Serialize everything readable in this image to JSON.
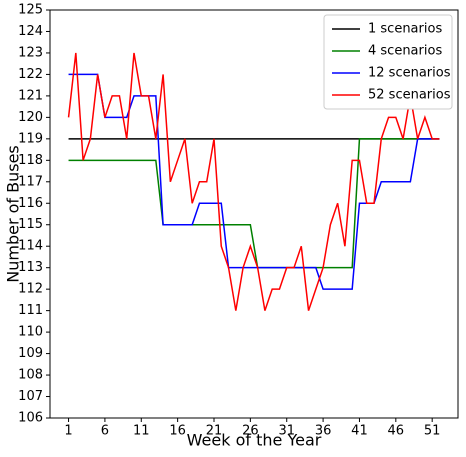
{
  "chart_data": {
    "type": "line",
    "x_label": "Week of the Year",
    "y_label": "Number of Buses",
    "x": [
      1,
      2,
      3,
      4,
      5,
      6,
      7,
      8,
      9,
      10,
      11,
      12,
      13,
      14,
      15,
      16,
      17,
      18,
      19,
      20,
      21,
      22,
      23,
      24,
      25,
      26,
      27,
      28,
      29,
      30,
      31,
      32,
      33,
      34,
      35,
      36,
      37,
      38,
      39,
      40,
      41,
      42,
      43,
      44,
      45,
      46,
      47,
      48,
      49,
      50,
      51,
      52
    ],
    "series": [
      {
        "name": "1 scenarios",
        "color": "#000000",
        "values": [
          119,
          119,
          119,
          119,
          119,
          119,
          119,
          119,
          119,
          119,
          119,
          119,
          119,
          119,
          119,
          119,
          119,
          119,
          119,
          119,
          119,
          119,
          119,
          119,
          119,
          119,
          119,
          119,
          119,
          119,
          119,
          119,
          119,
          119,
          119,
          119,
          119,
          119,
          119,
          119,
          119,
          119,
          119,
          119,
          119,
          119,
          119,
          119,
          119,
          119,
          119,
          119
        ]
      },
      {
        "name": "4 scenarios",
        "color": "#008000",
        "values": [
          118,
          118,
          118,
          118,
          118,
          118,
          118,
          118,
          118,
          118,
          118,
          118,
          118,
          115,
          115,
          115,
          115,
          115,
          115,
          115,
          115,
          115,
          115,
          115,
          115,
          115,
          113,
          113,
          113,
          113,
          113,
          113,
          113,
          113,
          113,
          113,
          113,
          113,
          113,
          113,
          119,
          119,
          119,
          119,
          119,
          119,
          119,
          119,
          119,
          119,
          119,
          119
        ]
      },
      {
        "name": "12 scenarios",
        "color": "#0000ff",
        "values": [
          122,
          122,
          122,
          122,
          122,
          120,
          120,
          120,
          120,
          121,
          121,
          121,
          121,
          115,
          115,
          115,
          115,
          115,
          116,
          116,
          116,
          116,
          113,
          113,
          113,
          113,
          113,
          113,
          113,
          113,
          113,
          113,
          113,
          113,
          113,
          112,
          112,
          112,
          112,
          112,
          116,
          116,
          116,
          117,
          117,
          117,
          117,
          117,
          119,
          119,
          119,
          119
        ]
      },
      {
        "name": "52 scenarios",
        "color": "#ff0000",
        "values": [
          120,
          123,
          118,
          119,
          122,
          120,
          121,
          121,
          119,
          123,
          121,
          121,
          119,
          122,
          117,
          118,
          119,
          116,
          117,
          117,
          119,
          114,
          113,
          111,
          113,
          114,
          113,
          111,
          112,
          112,
          113,
          113,
          114,
          111,
          112,
          113,
          115,
          116,
          114,
          118,
          118,
          116,
          116,
          119,
          120,
          120,
          119,
          121,
          119,
          120,
          119,
          119
        ]
      }
    ],
    "xlim": [
      -1.55,
      54.55
    ],
    "xticks": [
      1,
      6,
      11,
      16,
      21,
      26,
      31,
      36,
      41,
      46,
      51
    ],
    "ylim": [
      106,
      125
    ],
    "yticks": [
      106,
      107,
      108,
      109,
      110,
      111,
      112,
      113,
      114,
      115,
      116,
      117,
      118,
      119,
      120,
      121,
      122,
      123,
      124,
      125
    ],
    "grid": false,
    "legend": "upper right"
  }
}
